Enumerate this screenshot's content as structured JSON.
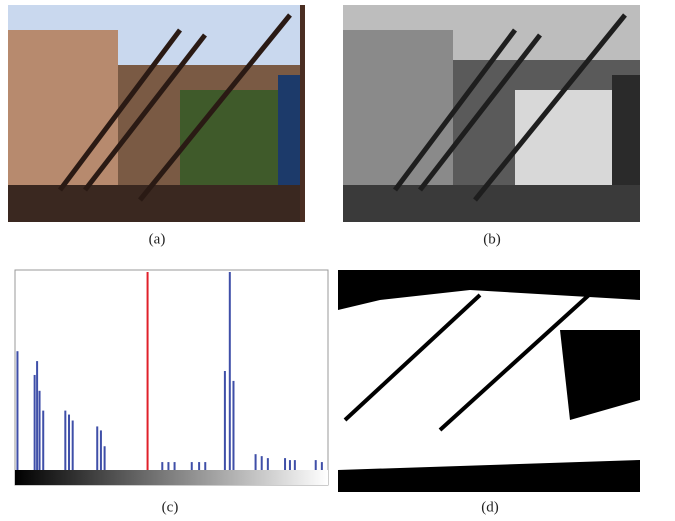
{
  "captions": [
    "(a)",
    "(b)",
    "(c)",
    "(d)"
  ],
  "histogram": {
    "type": "bar",
    "xlim": [
      0,
      255
    ],
    "ylim": [
      0,
      1
    ],
    "x": [
      2,
      16,
      18,
      20,
      23,
      41,
      44,
      47,
      67,
      70,
      73,
      120,
      125,
      130,
      144,
      150,
      155,
      171,
      175,
      178,
      196,
      201,
      206,
      220,
      224,
      228,
      245,
      250
    ],
    "values": [
      0.6,
      0.48,
      0.55,
      0.4,
      0.3,
      0.3,
      0.28,
      0.25,
      0.22,
      0.2,
      0.12,
      0.04,
      0.04,
      0.04,
      0.04,
      0.04,
      0.04,
      0.5,
      1.0,
      0.45,
      0.08,
      0.07,
      0.06,
      0.06,
      0.05,
      0.05,
      0.05,
      0.04
    ],
    "threshold": 108,
    "color": "#3f4fa8",
    "threshold_color": "#e0202a"
  }
}
